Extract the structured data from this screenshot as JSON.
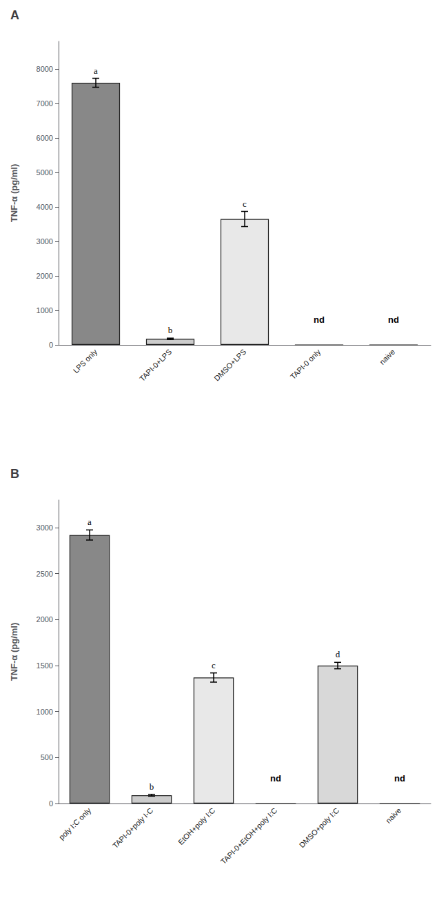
{
  "chart_data": [
    {
      "type": "bar",
      "title": "A",
      "ylabel": "TNF-α (pg/ml)",
      "categories": [
        "LPS only",
        "TAPI-0+LPS",
        "DMSO+LPS",
        "TAPI-0 only",
        "naive"
      ],
      "values": [
        7600,
        175,
        3650,
        0,
        0
      ],
      "errors": [
        130,
        20,
        220,
        0,
        0
      ],
      "annotations": [
        "a",
        "b",
        "c",
        "nd",
        "nd"
      ],
      "colors": [
        "#888888",
        "#cccccc",
        "#e8e8e8",
        "#ffffff",
        "#ffffff"
      ],
      "ylim": [
        0,
        8800
      ],
      "yticks": [
        0,
        1000,
        2000,
        3000,
        4000,
        5000,
        6000,
        7000,
        8000
      ],
      "grid": false
    },
    {
      "type": "bar",
      "title": "B",
      "ylabel": "TNF-α (pg/ml)",
      "categories": [
        "poly I:C only",
        "TAPI-0+poly I-C",
        "EtOH+poly I:C",
        "TAPI-0+EtOH+poly I:C",
        "DMSO+poly I:C",
        "naive"
      ],
      "values": [
        2920,
        90,
        1370,
        0,
        1500,
        0
      ],
      "errors": [
        55,
        10,
        50,
        0,
        35,
        0
      ],
      "annotations": [
        "a",
        "b",
        "c",
        "nd",
        "d",
        "nd"
      ],
      "colors": [
        "#888888",
        "#cccccc",
        "#e8e8e8",
        "#ffffff",
        "#d8d8d8",
        "#ffffff"
      ],
      "ylim": [
        0,
        3300
      ],
      "yticks": [
        0,
        500,
        1000,
        1500,
        2000,
        2500,
        3000
      ],
      "grid": false
    }
  ]
}
